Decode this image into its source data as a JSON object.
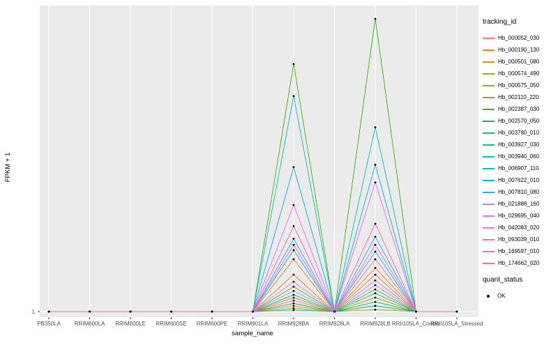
{
  "chart_data": {
    "type": "line",
    "title": "",
    "xlabel": "sample_name",
    "ylabel": "FPKM + 1",
    "y_tick_label": "1",
    "y_ticks": [
      1
    ],
    "ylim": [
      1,
      65
    ],
    "grid": true,
    "panel_bg": "#EBEBEB",
    "grid_color": "#FFFFFF",
    "point_color": "#000000",
    "tick_text_color": "#4D4D4D",
    "categories": [
      "PB350LA",
      "RRIM600LA",
      "RRIM600LE",
      "RRIM600SE",
      "RRIM600PE",
      "RRIM901LA",
      "RRIM928BA",
      "RRIM928LA",
      "RRIM928LB",
      "RRII105LA_Control",
      "RRII105LA_Stressed"
    ],
    "legend": {
      "title": "tracking_id",
      "position": "right"
    },
    "legend2": {
      "title": "quant_status",
      "items": [
        {
          "label": "OK",
          "key": "point"
        }
      ]
    },
    "series": [
      {
        "name": "Hb_000052_030",
        "color": "#F8766D",
        "values": [
          1,
          1,
          1,
          1,
          1,
          1,
          2.2,
          1,
          2.2,
          1,
          1
        ]
      },
      {
        "name": "Hb_000190_130",
        "color": "#EA8331",
        "values": [
          1,
          1,
          1,
          1,
          1,
          1,
          11.9,
          1,
          10.1,
          1,
          1
        ]
      },
      {
        "name": "Hb_000501_080",
        "color": "#D89000",
        "values": [
          1,
          1,
          1,
          1,
          1,
          1,
          8.7,
          1,
          8.7,
          1,
          1
        ]
      },
      {
        "name": "Hb_000574_490",
        "color": "#C09B00",
        "values": [
          1,
          1,
          1,
          1,
          1,
          1,
          3.9,
          1,
          3.9,
          1,
          1
        ]
      },
      {
        "name": "Hb_000575_050",
        "color": "#A3A500",
        "values": [
          1,
          1,
          1,
          1,
          1,
          1,
          1.7,
          1,
          1.4,
          1,
          1
        ]
      },
      {
        "name": "Hb_002110_220",
        "color": "#7CAE00",
        "values": [
          1,
          1,
          1,
          1,
          1,
          1,
          6.2,
          1,
          5.6,
          1,
          1
        ]
      },
      {
        "name": "Hb_002387_030",
        "color": "#39B600",
        "values": [
          1,
          1,
          1,
          1,
          1,
          1,
          52.6,
          1,
          62,
          1,
          1
        ]
      },
      {
        "name": "Hb_002570_050",
        "color": "#00BB4E",
        "values": [
          1,
          1,
          1,
          1,
          1,
          1,
          2.7,
          1,
          3,
          1,
          1
        ]
      },
      {
        "name": "Hb_003780_010",
        "color": "#00BF7D",
        "values": [
          1,
          1,
          1,
          1,
          1,
          1,
          1.3,
          1,
          2.2,
          1,
          1
        ]
      },
      {
        "name": "Hb_003927_030",
        "color": "#00C1A3",
        "values": [
          1,
          1,
          1,
          1,
          1,
          1,
          4.5,
          1,
          4.8,
          1,
          1
        ]
      },
      {
        "name": "Hb_003940_060",
        "color": "#00BFC4",
        "values": [
          1,
          1,
          1,
          1,
          1,
          1,
          45.9,
          1,
          39.4,
          1,
          1
        ]
      },
      {
        "name": "Hb_006907_110",
        "color": "#00BAE0",
        "values": [
          1,
          1,
          1,
          1,
          1,
          1,
          13.8,
          1,
          13.5,
          1,
          1
        ]
      },
      {
        "name": "Hb_007622_010",
        "color": "#00B0F6",
        "values": [
          1,
          1,
          1,
          1,
          1,
          1,
          31.1,
          1,
          31.6,
          1,
          1
        ]
      },
      {
        "name": "Hb_007810_080",
        "color": "#35A2FF",
        "values": [
          1,
          1,
          1,
          1,
          1,
          1,
          16.2,
          1,
          16.6,
          1,
          1
        ]
      },
      {
        "name": "Hb_021888_160",
        "color": "#9590FF",
        "values": [
          1,
          1,
          1,
          1,
          1,
          1,
          5.3,
          1,
          6.5,
          1,
          1
        ]
      },
      {
        "name": "Hb_029695_040",
        "color": "#C77CFF",
        "values": [
          1,
          1,
          1,
          1,
          1,
          1,
          7.2,
          1,
          7.5,
          1,
          1
        ]
      },
      {
        "name": "Hb_042083_020",
        "color": "#E76BF3",
        "values": [
          1,
          1,
          1,
          1,
          1,
          1,
          23.2,
          1,
          27.9,
          1,
          1
        ]
      },
      {
        "name": "Hb_093039_010",
        "color": "#FA62DB",
        "values": [
          1,
          1,
          1,
          1,
          1,
          1,
          14.9,
          1,
          14.9,
          1,
          1
        ]
      },
      {
        "name": "Hb_169597_010",
        "color": "#FF62BC",
        "values": [
          1,
          1,
          1,
          1,
          1,
          1,
          18.8,
          1,
          19.3,
          1,
          1
        ]
      },
      {
        "name": "Hb_174662_020",
        "color": "#FF6A98",
        "values": [
          1,
          1,
          1,
          1,
          1,
          1,
          3.3,
          1,
          11.9,
          1,
          1
        ]
      }
    ]
  }
}
